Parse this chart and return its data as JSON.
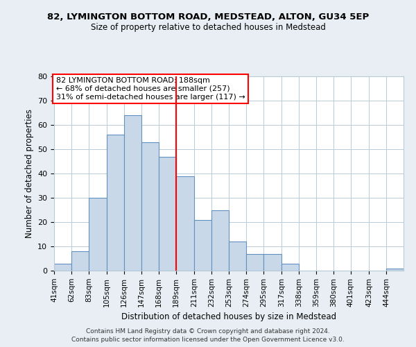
{
  "title1": "82, LYMINGTON BOTTOM ROAD, MEDSTEAD, ALTON, GU34 5EP",
  "title2": "Size of property relative to detached houses in Medstead",
  "xlabel": "Distribution of detached houses by size in Medstead",
  "ylabel": "Number of detached properties",
  "bin_edges": [
    41,
    62,
    83,
    105,
    126,
    147,
    168,
    189,
    211,
    232,
    253,
    274,
    295,
    317,
    338,
    359,
    380,
    401,
    423,
    444,
    465
  ],
  "heights": [
    3,
    8,
    30,
    56,
    64,
    53,
    47,
    39,
    21,
    25,
    12,
    7,
    7,
    3,
    0,
    0,
    0,
    0,
    0,
    1
  ],
  "bar_facecolor": "#c8d8e8",
  "bar_edgecolor": "#6090c0",
  "vline_x": 189,
  "vline_color": "red",
  "annotation_title": "82 LYMINGTON BOTTOM ROAD: 188sqm",
  "annotation_line1": "← 68% of detached houses are smaller (257)",
  "annotation_line2": "31% of semi-detached houses are larger (117) →",
  "annotation_box_color": "red",
  "annotation_bg": "white",
  "ylim": [
    0,
    80
  ],
  "yticks": [
    0,
    10,
    20,
    30,
    40,
    50,
    60,
    70,
    80
  ],
  "footer1": "Contains HM Land Registry data © Crown copyright and database right 2024.",
  "footer2": "Contains public sector information licensed under the Open Government Licence v3.0.",
  "bg_color": "#e8eef4",
  "plot_bg_color": "white",
  "grid_color": "#b8ccd8"
}
